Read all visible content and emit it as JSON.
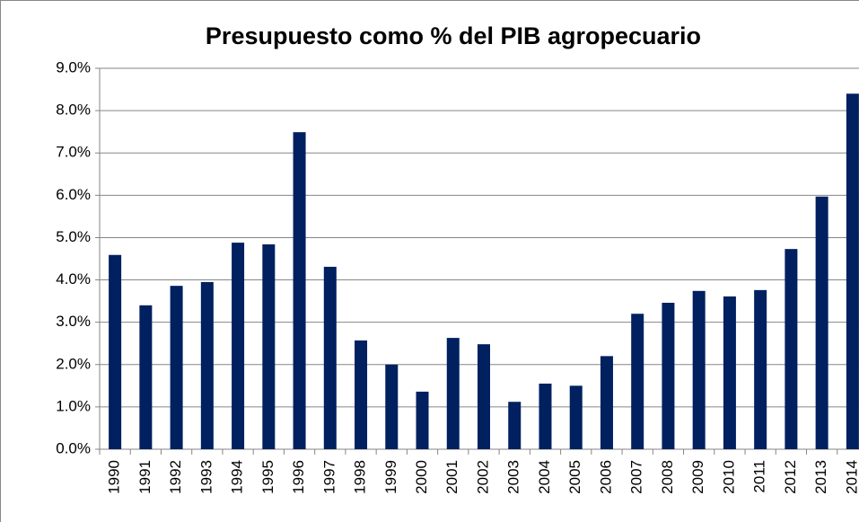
{
  "chart_data": {
    "type": "bar",
    "title": "Presupuesto como % del PIB agropecuario",
    "categories": [
      "1990",
      "1991",
      "1992",
      "1993",
      "1994",
      "1995",
      "1996",
      "1997",
      "1998",
      "1999",
      "2000",
      "2001",
      "2002",
      "2003",
      "2004",
      "2005",
      "2006",
      "2007",
      "2008",
      "2009",
      "2010",
      "2011",
      "2012",
      "2013",
      "2014"
    ],
    "values": [
      4.59,
      3.4,
      3.86,
      3.95,
      4.88,
      4.84,
      7.49,
      4.31,
      2.57,
      2.0,
      1.36,
      2.63,
      2.48,
      1.12,
      1.55,
      1.5,
      2.2,
      3.2,
      3.46,
      3.74,
      3.61,
      3.76,
      4.73,
      5.97,
      8.4
    ],
    "color": "#002060",
    "ylim": [
      0,
      9
    ],
    "yticks": [
      {
        "value": 0,
        "label": "0.0%"
      },
      {
        "value": 1,
        "label": "1.0%"
      },
      {
        "value": 2,
        "label": "2.0%"
      },
      {
        "value": 3,
        "label": "3.0%"
      },
      {
        "value": 4,
        "label": "4.0%"
      },
      {
        "value": 5,
        "label": "5.0%"
      },
      {
        "value": 6,
        "label": "6.0%"
      },
      {
        "value": 7,
        "label": "7.0%"
      },
      {
        "value": 8,
        "label": "8.0%"
      },
      {
        "value": 9,
        "label": "9.0%"
      }
    ],
    "grid": true
  }
}
